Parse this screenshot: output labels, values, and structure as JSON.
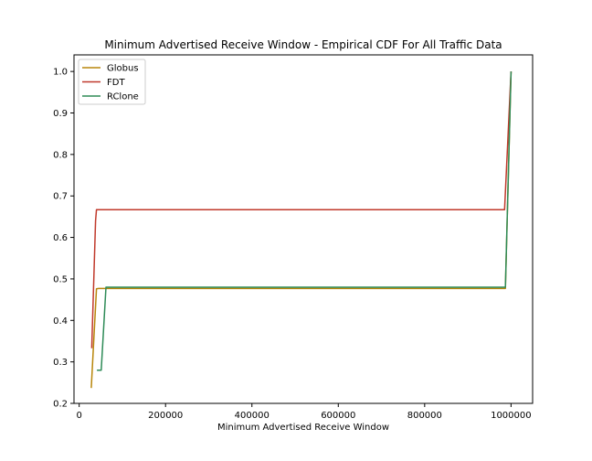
{
  "chart_data": {
    "type": "line",
    "title": "Minimum Advertised Receive Window - Empirical CDF For All Traffic Data",
    "xlabel": "Minimum Advertised Receive Window",
    "ylabel": "",
    "xlim": [
      -12000,
      1050000
    ],
    "ylim": [
      0.2,
      1.04
    ],
    "x_ticks": [
      0,
      200000,
      400000,
      600000,
      800000,
      1000000
    ],
    "x_tick_labels": [
      "0",
      "200000",
      "400000",
      "600000",
      "800000",
      "1000000"
    ],
    "y_ticks": [
      0.2,
      0.3,
      0.4,
      0.5,
      0.6,
      0.7,
      0.8,
      0.9,
      1.0
    ],
    "y_tick_labels": [
      "0.2",
      "0.3",
      "0.4",
      "0.5",
      "0.6",
      "0.7",
      "0.8",
      "0.9",
      "1.0"
    ],
    "grid": false,
    "legend_position": "top-left",
    "series": [
      {
        "name": "Globus",
        "color": "#b8860b",
        "x": [
          28000,
          40000,
          45000,
          987000,
          1000000
        ],
        "y": [
          0.237,
          0.476,
          0.477,
          0.477,
          1.0
        ]
      },
      {
        "name": "FDT",
        "color": "#c0392b",
        "x": [
          29000,
          38000,
          40000,
          985000,
          1000000
        ],
        "y": [
          0.333,
          0.64,
          0.667,
          0.667,
          1.0
        ]
      },
      {
        "name": "RClone",
        "color": "#2e8b57",
        "x": [
          41000,
          51000,
          62000,
          987000,
          1000000
        ],
        "y": [
          0.28,
          0.28,
          0.48,
          0.48,
          1.0
        ]
      }
    ]
  }
}
